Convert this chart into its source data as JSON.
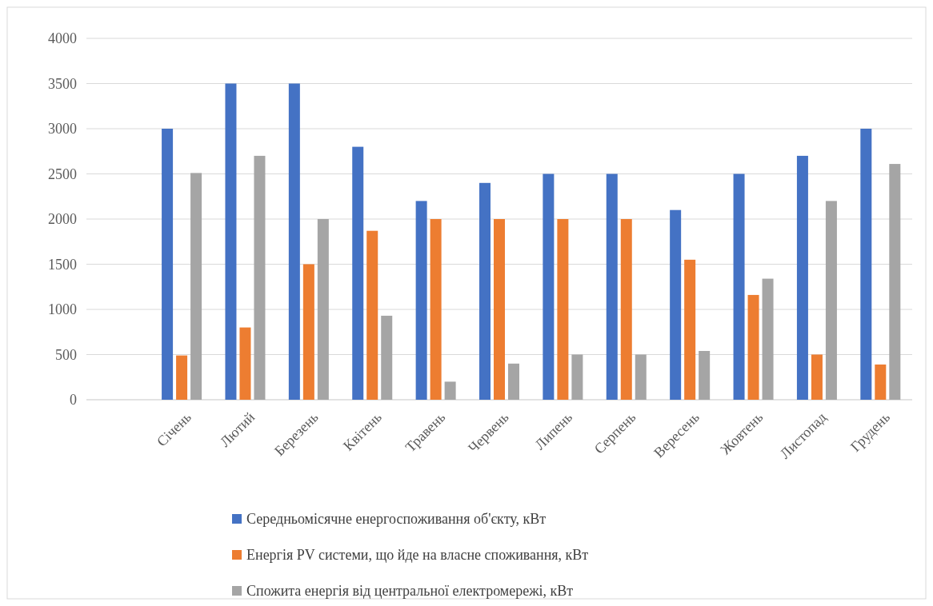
{
  "chart_data": {
    "type": "bar",
    "categories": [
      null,
      "Січень",
      "Лютий",
      "Березень",
      "Квітень",
      "Травень",
      "Червень",
      "Липень",
      "Серпень",
      "Вересень",
      "Жовтень",
      "Листопад",
      "Грудень"
    ],
    "series": [
      {
        "name": "Середньомісячне енергоспоживання об'єкту, кВт",
        "color": "#4472c4",
        "values": [
          null,
          3000,
          3500,
          3500,
          2800,
          2200,
          2400,
          2500,
          2500,
          2100,
          2500,
          2700,
          3000
        ]
      },
      {
        "name": "Енергія PV системи, що йде на власне споживання, кВт",
        "color": "#ed7d31",
        "values": [
          null,
          490,
          800,
          1500,
          1870,
          2000,
          2000,
          2000,
          2000,
          1550,
          1160,
          500,
          390
        ]
      },
      {
        "name": "Спожита енергія від центральної електромережі, кВт",
        "color": "#a5a5a5",
        "values": [
          null,
          2510,
          2700,
          2000,
          930,
          200,
          400,
          500,
          500,
          540,
          1340,
          2200,
          2610
        ]
      }
    ],
    "ylim": [
      0,
      4000
    ],
    "yticks": [
      0,
      500,
      1000,
      1500,
      2000,
      2500,
      3000,
      3500,
      4000
    ],
    "grid": "y",
    "legend": "bottom"
  }
}
